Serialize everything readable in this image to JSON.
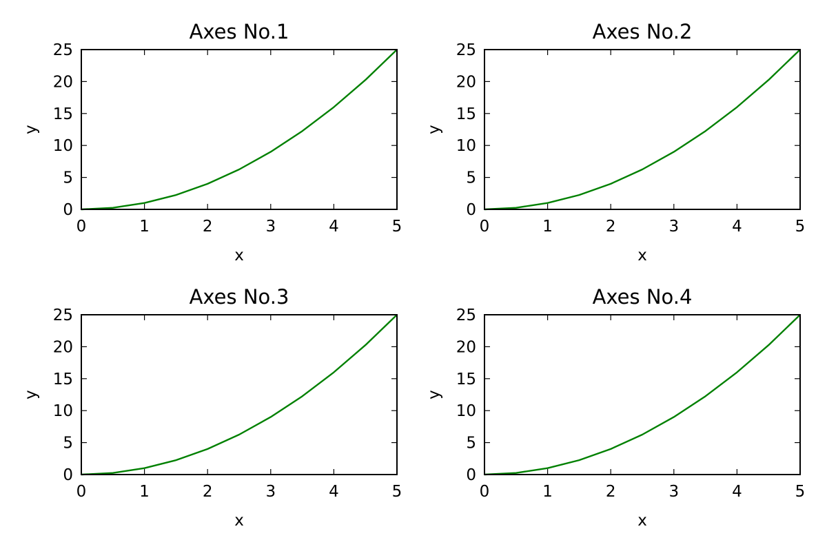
{
  "chart_data": [
    {
      "type": "line",
      "title": "Axes No.1",
      "xlabel": "x",
      "ylabel": "y",
      "xlim": [
        0,
        5
      ],
      "ylim": [
        0,
        25
      ],
      "xticks": [
        0,
        1,
        2,
        3,
        4,
        5
      ],
      "yticks": [
        0,
        5,
        10,
        15,
        20,
        25
      ],
      "grid": false,
      "series": [
        {
          "color": "#008000",
          "x": [
            0,
            0.5,
            1,
            1.5,
            2,
            2.5,
            3,
            3.5,
            4,
            4.5,
            5
          ],
          "y": [
            0,
            0.25,
            1,
            2.25,
            4,
            6.25,
            9,
            12.25,
            16,
            20.25,
            25
          ]
        }
      ]
    },
    {
      "type": "line",
      "title": "Axes No.2",
      "xlabel": "x",
      "ylabel": "y",
      "xlim": [
        0,
        5
      ],
      "ylim": [
        0,
        25
      ],
      "xticks": [
        0,
        1,
        2,
        3,
        4,
        5
      ],
      "yticks": [
        0,
        5,
        10,
        15,
        20,
        25
      ],
      "grid": false,
      "series": [
        {
          "color": "#008000",
          "x": [
            0,
            0.5,
            1,
            1.5,
            2,
            2.5,
            3,
            3.5,
            4,
            4.5,
            5
          ],
          "y": [
            0,
            0.25,
            1,
            2.25,
            4,
            6.25,
            9,
            12.25,
            16,
            20.25,
            25
          ]
        }
      ]
    },
    {
      "type": "line",
      "title": "Axes No.3",
      "xlabel": "x",
      "ylabel": "y",
      "xlim": [
        0,
        5
      ],
      "ylim": [
        0,
        25
      ],
      "xticks": [
        0,
        1,
        2,
        3,
        4,
        5
      ],
      "yticks": [
        0,
        5,
        10,
        15,
        20,
        25
      ],
      "grid": false,
      "series": [
        {
          "color": "#008000",
          "x": [
            0,
            0.5,
            1,
            1.5,
            2,
            2.5,
            3,
            3.5,
            4,
            4.5,
            5
          ],
          "y": [
            0,
            0.25,
            1,
            2.25,
            4,
            6.25,
            9,
            12.25,
            16,
            20.25,
            25
          ]
        }
      ]
    },
    {
      "type": "line",
      "title": "Axes No.4",
      "xlabel": "x",
      "ylabel": "y",
      "xlim": [
        0,
        5
      ],
      "ylim": [
        0,
        25
      ],
      "xticks": [
        0,
        1,
        2,
        3,
        4,
        5
      ],
      "yticks": [
        0,
        5,
        10,
        15,
        20,
        25
      ],
      "grid": false,
      "series": [
        {
          "color": "#008000",
          "x": [
            0,
            0.5,
            1,
            1.5,
            2,
            2.5,
            3,
            3.5,
            4,
            4.5,
            5
          ],
          "y": [
            0,
            0.25,
            1,
            2.25,
            4,
            6.25,
            9,
            12.25,
            16,
            20.25,
            25
          ]
        }
      ]
    }
  ]
}
